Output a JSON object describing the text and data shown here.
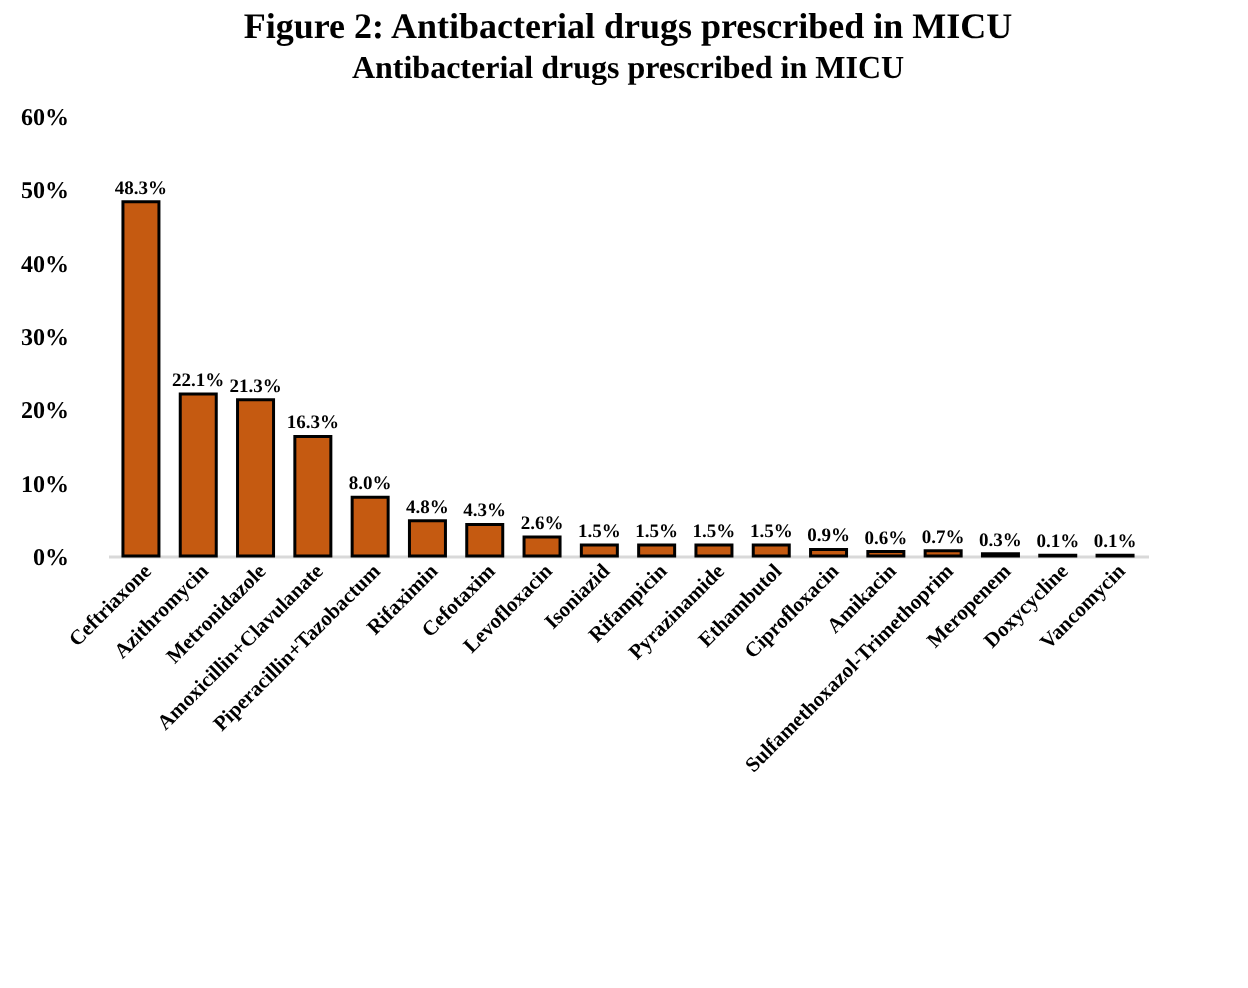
{
  "chart_data": {
    "type": "bar",
    "title": "Antibacterial drugs prescribed in MICU",
    "annotations": [
      "Figure 2: Antibacterial drugs prescribed in MICU"
    ],
    "categories": [
      "Ceftriaxone",
      "Azithromycin",
      "Metronidazole",
      "Amoxicillin+Clavulanate",
      "Piperacillin+Tazobactum",
      "Rifaximin",
      "Cefotaxim",
      "Levofloxacin",
      "Isoniazid",
      "Rifampicin",
      "Pyrazinamide",
      "Ethambutol",
      "Ciprofloxacin",
      "Amikacin",
      "Sulfamethoxazol-Trimethoprim",
      "Meropenem",
      "Doxycycline",
      "Vancomycin"
    ],
    "values": [
      48.3,
      22.1,
      21.3,
      16.3,
      8.0,
      4.8,
      4.3,
      2.6,
      1.5,
      1.5,
      1.5,
      1.5,
      0.9,
      0.6,
      0.7,
      0.3,
      0.1,
      0.1
    ],
    "value_labels": [
      "48.3%",
      "22.1%",
      "21.3%",
      "16.3%",
      "8.0%",
      "4.8%",
      "4.3%",
      "2.6%",
      "1.5%",
      "1.5%",
      "1.5%",
      "1.5%",
      "0.9%",
      "0.6%",
      "0.7%",
      "0.3%",
      "0.1%",
      "0.1%"
    ],
    "color": "#c55a11",
    "ylim": [
      0,
      60
    ],
    "yticks": [
      {
        "value": 0,
        "label": "0%"
      },
      {
        "value": 10,
        "label": "10%"
      },
      {
        "value": 20,
        "label": "20%"
      },
      {
        "value": 30,
        "label": "30%"
      },
      {
        "value": 40,
        "label": "40%"
      },
      {
        "value": 50,
        "label": "50%"
      },
      {
        "value": 60,
        "label": "60%"
      }
    ],
    "grid": false
  }
}
